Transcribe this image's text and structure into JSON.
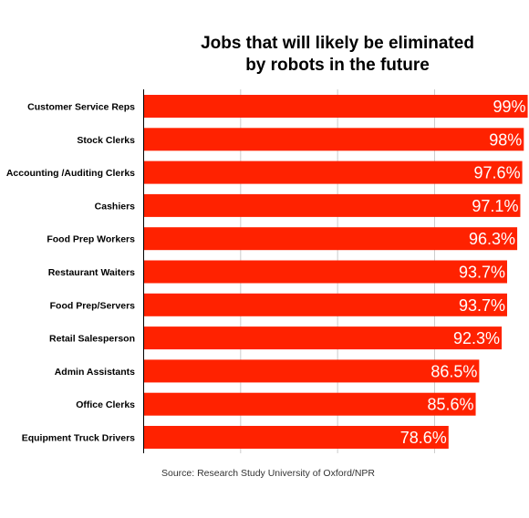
{
  "chart_data": {
    "type": "bar",
    "orientation": "horizontal",
    "title": "Jobs that will likely be eliminated by robots in the future",
    "title_lines": [
      "Jobs that will likely be eliminated",
      "by robots in the future"
    ],
    "categories": [
      "Customer Service Reps",
      "Stock Clerks",
      "Accounting /Auditing Clerks",
      "Cashiers",
      "Food Prep Workers",
      "Restaurant Waiters",
      "Food Prep/Servers",
      "Retail Salesperson",
      "Admin Assistants",
      "Office Clerks",
      "Equipment Truck Drivers"
    ],
    "values": [
      99,
      98,
      97.6,
      97.1,
      96.3,
      93.7,
      93.7,
      92.3,
      86.5,
      85.6,
      78.6
    ],
    "value_labels": [
      "99%",
      "98%",
      "97.6%",
      "97.1%",
      "96.3%",
      "93.7%",
      "93.7%",
      "92.3%",
      "86.5%",
      "85.6%",
      "78.6%"
    ],
    "xlim": [
      0,
      100
    ],
    "grid": true,
    "xlabel": "",
    "ylabel": "",
    "bar_color": "#ff2200",
    "source": "Source: Research Study University of Oxford/NPR"
  }
}
